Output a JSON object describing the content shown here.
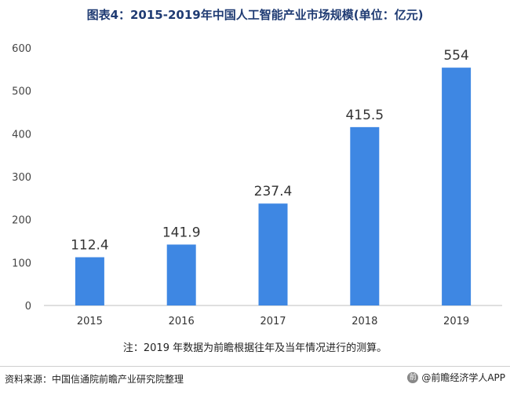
{
  "chart_data": {
    "type": "bar",
    "title": "图表4：2015-2019年中国人工智能产业市场规模(单位：亿元)",
    "categories": [
      "2015",
      "2016",
      "2017",
      "2018",
      "2019"
    ],
    "values": [
      112.4,
      141.9,
      237.4,
      415.5,
      554
    ],
    "value_labels": [
      "112.4",
      "141.9",
      "237.4",
      "415.5",
      "554"
    ],
    "yticks": [
      "0",
      "100",
      "200",
      "300",
      "400",
      "500",
      "600"
    ],
    "ylim": [
      0,
      600
    ],
    "grid": false,
    "bar_color": "#3e87e3"
  },
  "note": "注：2019 年数据为前瞻根据往年及当年情况进行的测算。",
  "source": "资料来源：中国信通院前瞻产业研究院整理",
  "brand": "@前瞻经济学人APP",
  "brand_mark": "前"
}
